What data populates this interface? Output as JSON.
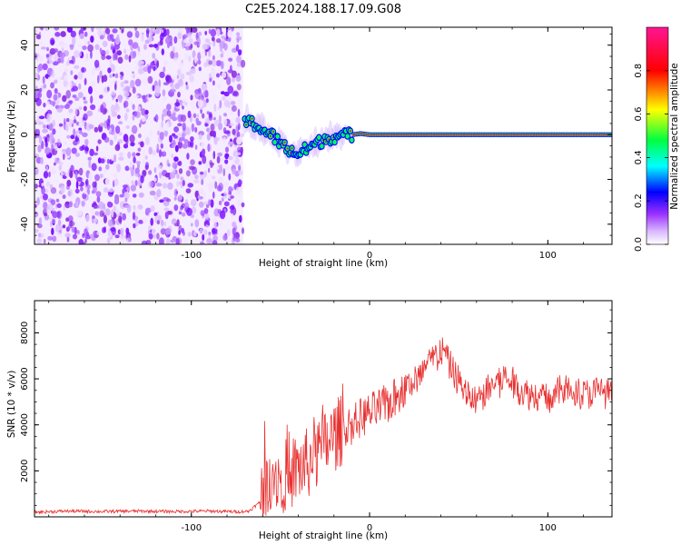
{
  "title": "C2E5.2024.188.17.09.G08",
  "chart_data": [
    {
      "type": "heatmap",
      "xlabel": "Height of straight line (km)",
      "ylabel": "Frequency (Hz)",
      "xlim": [
        -188,
        136
      ],
      "ylim": [
        -49,
        48
      ],
      "x_ticks": [
        -100,
        0,
        100
      ],
      "y_ticks": [
        -40,
        -20,
        0,
        20,
        40
      ],
      "noise_region_x": [
        -188,
        -71
      ],
      "signal_track": {
        "description_values": "frequency vs height",
        "x": [
          -70,
          -65,
          -60,
          -55,
          -50,
          -45,
          -40,
          -35,
          -30,
          -25,
          -20,
          -15,
          -10,
          -5,
          0,
          10,
          20,
          40,
          60,
          80,
          100,
          136
        ],
        "y": [
          6,
          5,
          2,
          0,
          -4,
          -7,
          -9,
          -6,
          -4,
          -2,
          -1,
          -0.5,
          0,
          0.5,
          0,
          0,
          0,
          0,
          0,
          0,
          0,
          0
        ]
      },
      "colorbar": {
        "label": "Normalized spectral amplitude",
        "range": [
          0,
          1
        ],
        "ticks": [
          0.0,
          0.2,
          0.4,
          0.6,
          0.8
        ],
        "colors": [
          "#ffffff",
          "#9b30ff",
          "#0000ff",
          "#00ffff",
          "#00ff00",
          "#ffff00",
          "#ff0000",
          "#ff00aa"
        ]
      },
      "grid": false
    },
    {
      "type": "line",
      "xlabel": "Height of straight line (km)",
      "ylabel": "SNR (10 * v/v)",
      "xlim": [
        -188,
        136
      ],
      "ylim": [
        0,
        9400
      ],
      "x_ticks": [
        -100,
        0,
        100
      ],
      "y_ticks": [
        2000,
        4000,
        6000,
        8000
      ],
      "series_color": "#e83030",
      "series": [
        {
          "x": [
            -188,
            -170,
            -150,
            -130,
            -110,
            -90,
            -75,
            -68,
            -62,
            -58,
            -55,
            -50,
            -45,
            -40,
            -35,
            -30,
            -25,
            -20,
            -15,
            -10,
            -5,
            0,
            5,
            10,
            15,
            20,
            25,
            30,
            35,
            40,
            45,
            50,
            55,
            60,
            65,
            70,
            75,
            80,
            85,
            90,
            95,
            100,
            105,
            110,
            115,
            120,
            125,
            130,
            136
          ],
          "y": [
            200,
            250,
            230,
            250,
            230,
            250,
            220,
            240,
            600,
            1500,
            2000,
            1700,
            1900,
            2100,
            2300,
            2600,
            3100,
            3500,
            3800,
            4000,
            4300,
            4500,
            4700,
            4900,
            5200,
            5600,
            5900,
            6300,
            6800,
            7300,
            6600,
            5900,
            5300,
            5000,
            5400,
            5800,
            6100,
            5800,
            5500,
            5300,
            5300,
            5100,
            5400,
            5600,
            5500,
            5300,
            5400,
            5500,
            5200
          ]
        }
      ],
      "grid": false
    }
  ]
}
